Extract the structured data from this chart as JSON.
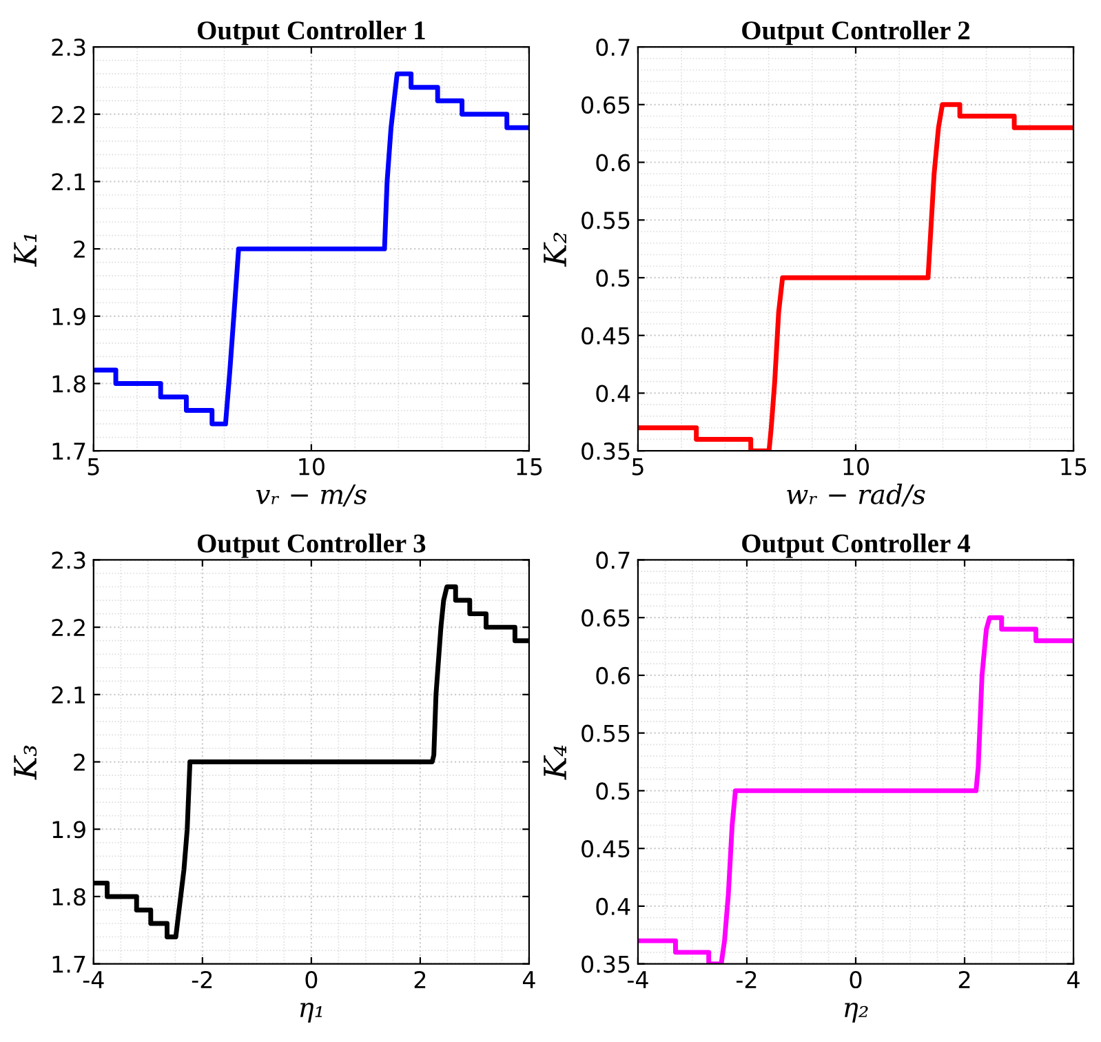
{
  "chart_data": [
    {
      "type": "line",
      "title": "Output Controller 1",
      "xlabel": "vᵣ − m/s",
      "ylabel": "K₁",
      "xlim": [
        5,
        15
      ],
      "xticks": [
        5,
        10,
        15
      ],
      "ylim": [
        1.7,
        2.3
      ],
      "yticks": [
        1.7,
        1.8,
        1.9,
        2,
        2.1,
        2.2,
        2.3
      ],
      "grid": true,
      "marker": "none",
      "line_style": "solid",
      "series": [
        {
          "color": "#0000ff",
          "x": [
            5,
            5.51,
            5.51,
            6.54,
            6.54,
            7.13,
            7.13,
            7.72,
            7.72,
            8.03,
            8.13,
            8.22,
            8.33,
            11.68,
            11.74,
            11.83,
            11.97,
            12.29,
            12.29,
            12.9,
            12.9,
            13.46,
            13.46,
            14.49,
            14.49,
            15
          ],
          "values": [
            1.82,
            1.82,
            1.8,
            1.8,
            1.78,
            1.78,
            1.76,
            1.76,
            1.74,
            1.74,
            1.82,
            1.9,
            2.0,
            2.0,
            2.1,
            2.18,
            2.26,
            2.26,
            2.24,
            2.24,
            2.22,
            2.22,
            2.2,
            2.2,
            2.18,
            2.18
          ]
        }
      ]
    },
    {
      "type": "line",
      "title": "Output Controller 2",
      "xlabel": "wᵣ − rad/s",
      "ylabel": "K₂",
      "xlim": [
        5,
        15
      ],
      "xticks": [
        5,
        10,
        15
      ],
      "ylim": [
        0.35,
        0.7
      ],
      "yticks": [
        0.35,
        0.4,
        0.45,
        0.5,
        0.55,
        0.6,
        0.65,
        0.7
      ],
      "grid": true,
      "marker": "none",
      "line_style": "solid",
      "series": [
        {
          "color": "#ff0000",
          "x": [
            5,
            6.34,
            6.34,
            7.59,
            7.59,
            8.01,
            8.06,
            8.14,
            8.23,
            8.32,
            11.66,
            11.8,
            11.9,
            11.99,
            12.39,
            12.39,
            13.64,
            13.64,
            15
          ],
          "values": [
            0.37,
            0.37,
            0.36,
            0.36,
            0.35,
            0.35,
            0.37,
            0.41,
            0.47,
            0.5,
            0.5,
            0.59,
            0.63,
            0.65,
            0.65,
            0.64,
            0.64,
            0.63,
            0.63
          ]
        }
      ]
    },
    {
      "type": "line",
      "title": "Output Controller 3",
      "xlabel": "η₁",
      "ylabel": "K₃",
      "xlim": [
        -4,
        4
      ],
      "xticks": [
        -4,
        -2,
        0,
        2,
        4
      ],
      "ylim": [
        1.7,
        2.3
      ],
      "yticks": [
        1.7,
        1.8,
        1.9,
        2,
        2.1,
        2.2,
        2.3
      ],
      "grid": true,
      "marker": "none",
      "line_style": "solid",
      "series": [
        {
          "color": "#000000",
          "x": [
            -4,
            -3.75,
            -3.75,
            -3.21,
            -3.21,
            -2.95,
            -2.95,
            -2.65,
            -2.65,
            -2.49,
            -2.46,
            -2.34,
            -2.28,
            -2.23,
            2.22,
            2.25,
            2.29,
            2.38,
            2.43,
            2.49,
            2.65,
            2.65,
            2.91,
            2.91,
            3.21,
            3.21,
            3.74,
            3.74,
            4
          ],
          "values": [
            1.82,
            1.82,
            1.8,
            1.8,
            1.78,
            1.78,
            1.76,
            1.76,
            1.74,
            1.74,
            1.76,
            1.84,
            1.9,
            2.0,
            2.0,
            2.01,
            2.1,
            2.2,
            2.24,
            2.26,
            2.26,
            2.24,
            2.24,
            2.22,
            2.22,
            2.2,
            2.2,
            2.18,
            2.18
          ]
        }
      ]
    },
    {
      "type": "line",
      "title": "Output Controller 4",
      "xlabel": "η₂",
      "ylabel": "K₄",
      "xlim": [
        -4,
        4
      ],
      "xticks": [
        -4,
        -2,
        0,
        2,
        4
      ],
      "ylim": [
        0.35,
        0.7
      ],
      "yticks": [
        0.35,
        0.4,
        0.45,
        0.5,
        0.55,
        0.6,
        0.65,
        0.7
      ],
      "grid": true,
      "marker": "none",
      "line_style": "solid",
      "series": [
        {
          "color": "#ff00ff",
          "x": [
            -4,
            -3.31,
            -3.31,
            -2.7,
            -2.7,
            -2.47,
            -2.41,
            -2.34,
            -2.27,
            -2.21,
            2.21,
            2.25,
            2.32,
            2.4,
            2.46,
            2.68,
            2.68,
            3.31,
            3.31,
            4
          ],
          "values": [
            0.37,
            0.37,
            0.36,
            0.36,
            0.35,
            0.35,
            0.37,
            0.41,
            0.47,
            0.5,
            0.5,
            0.52,
            0.6,
            0.64,
            0.65,
            0.65,
            0.64,
            0.64,
            0.63,
            0.63
          ]
        }
      ]
    }
  ]
}
